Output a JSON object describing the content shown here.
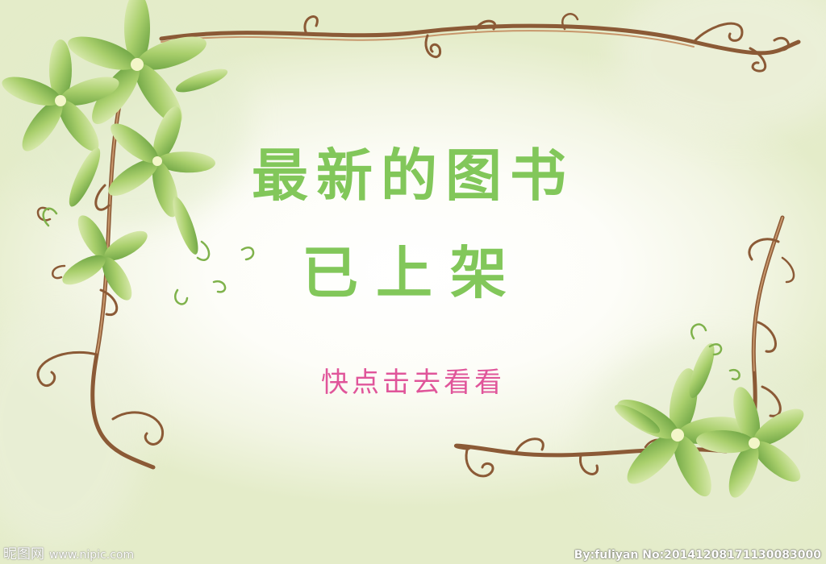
{
  "title": {
    "line1": "最新的图书",
    "line2": "已上架"
  },
  "subtitle": "快点击去看看",
  "watermark": {
    "site": "昵图网",
    "url": "www.nipic.com",
    "credit": "By:fuliyan No:20141208171130083000"
  },
  "colors": {
    "title": "#82c75a",
    "subtitle": "#e0559a",
    "vine": "#8b5a36",
    "leaf": "#8fbf56",
    "leaf_light": "#d9ebb0"
  }
}
